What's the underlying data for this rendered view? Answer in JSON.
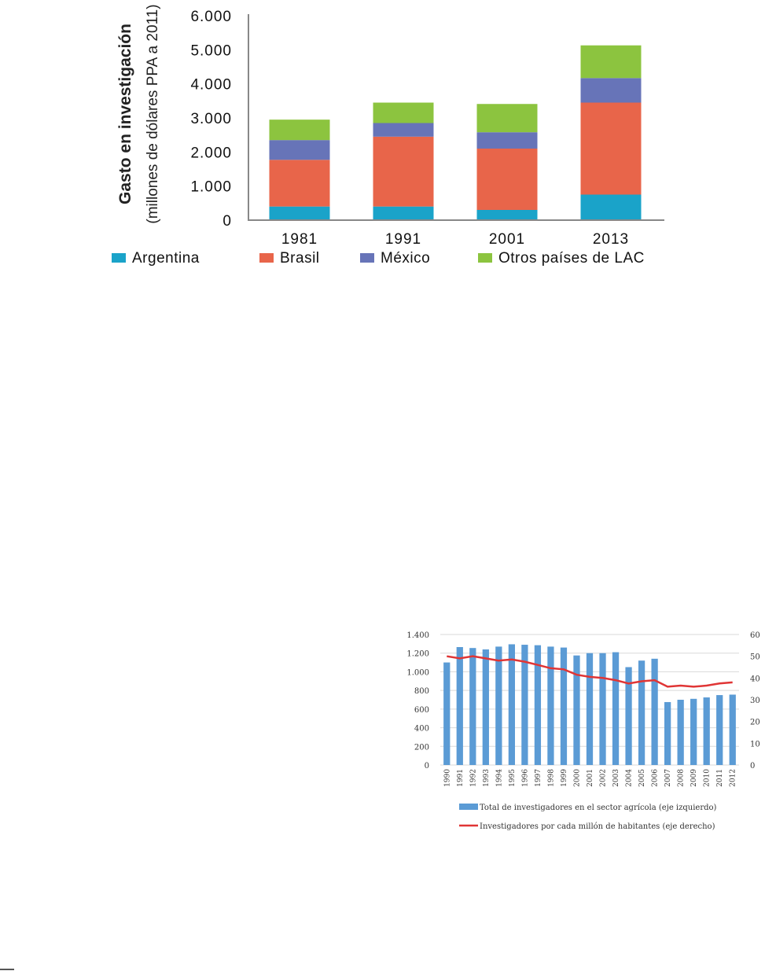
{
  "chart_data": [
    {
      "type": "bar",
      "stacked": true,
      "title": "",
      "categories": [
        "1981",
        "1991",
        "2001",
        "2013"
      ],
      "ylabel_line1": "Gasto en investigación",
      "ylabel_line2": "(millones de dólares PPA a 2011)",
      "ylim": [
        0,
        6000
      ],
      "yticks": [
        0,
        1000,
        2000,
        3000,
        4000,
        5000,
        6000
      ],
      "ytick_labels": [
        "0",
        "1.000",
        "2.000",
        "3.000",
        "4.000",
        "5.000",
        "6.000"
      ],
      "grid": false,
      "legend": "bottom",
      "series": [
        {
          "name": "Argentina",
          "color": "#1aa3c9",
          "values": [
            400,
            400,
            300,
            750
          ]
        },
        {
          "name": "Brasil",
          "color": "#e8654a",
          "values": [
            1370,
            2050,
            1800,
            2700
          ]
        },
        {
          "name": "México",
          "color": "#6774b8",
          "values": [
            580,
            400,
            480,
            720
          ]
        },
        {
          "name": "Otros países de LAC",
          "color": "#8cc43f",
          "values": [
            600,
            600,
            830,
            960
          ]
        }
      ]
    },
    {
      "type": "bar+line",
      "title": "",
      "categories": [
        "1990",
        "1991",
        "1992",
        "1993",
        "1994",
        "1995",
        "1996",
        "1997",
        "1998",
        "1999",
        "2000",
        "2001",
        "2002",
        "2003",
        "2004",
        "2005",
        "2006",
        "2007",
        "2008",
        "2009",
        "2010",
        "2011",
        "2012"
      ],
      "y_left_lim": [
        0,
        1400
      ],
      "y_left_ticks": [
        0,
        200,
        400,
        600,
        800,
        1000,
        1200,
        1400
      ],
      "y_left_tick_labels": [
        "0",
        "200",
        "400",
        "600",
        "800",
        "1.000",
        "1.200",
        "1.400"
      ],
      "y_right_lim": [
        0,
        60
      ],
      "y_right_ticks": [
        0,
        10,
        20,
        30,
        40,
        50,
        60
      ],
      "y_right_tick_labels": [
        "0",
        "10",
        "20",
        "30",
        "40",
        "50",
        "60"
      ],
      "legend": "bottom",
      "series": [
        {
          "name": "Total de investigadores en el sector agrícola (eje izquierdo)",
          "kind": "bar",
          "axis": "left",
          "color": "#5b9bd5",
          "values": [
            1100,
            1265,
            1255,
            1240,
            1270,
            1295,
            1290,
            1285,
            1270,
            1260,
            1175,
            1200,
            1200,
            1210,
            1050,
            1120,
            1140,
            675,
            700,
            710,
            725,
            750,
            755
          ]
        },
        {
          "name": "Investigadores por cada millón de habitantes (eje derecho)",
          "kind": "line",
          "axis": "right",
          "color": "#e03535",
          "values": [
            50,
            49,
            50,
            49,
            48,
            48.5,
            47.5,
            46,
            44.5,
            44,
            41.5,
            40.5,
            40,
            39,
            37.5,
            38.5,
            39,
            36,
            36.5,
            36,
            36.5,
            37.5,
            38
          ]
        }
      ]
    }
  ]
}
